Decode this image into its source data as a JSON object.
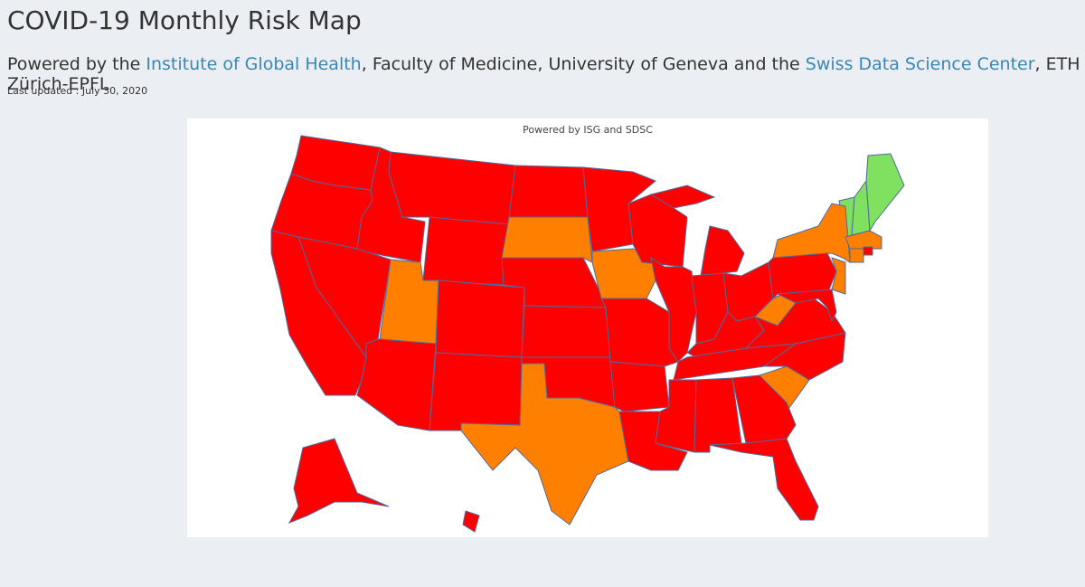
{
  "header": {
    "title": "COVID-19 Monthly Risk Map",
    "subtitle": [
      "Powered by the ",
      "Institute of Global Health",
      ", Faculty of Medicine, University of Geneva and the ",
      "Swiss Data Science Center",
      ", ETH Zürich-EPFL"
    ],
    "updated": "Last updated : July 30, 2020"
  },
  "map": {
    "title": "Powered by ISG and SDSC",
    "border_color": "#4f6a9a",
    "region_colors": [
      "#ff0000",
      "#ff0000",
      "#ff0000",
      "#ff0000",
      "#ff0000",
      "#ff0000",
      "#ff0000",
      "#ff8000",
      "#ff0000",
      "#ff0000",
      "#ff0000",
      "#ff0000",
      "#ff8000",
      "#ff0000",
      "#ff0000",
      "#ff0000",
      "#ff8000",
      "#ff0000",
      "#ff8000",
      "#ff0000",
      "#ff0000",
      "#ff0000",
      "#ff0000",
      "#ff0000",
      "#ff0000",
      "#ff0000",
      "#ff0000",
      "#ff0000",
      "#ff0000",
      "#ff0000",
      "#ff0000",
      "#ff8000",
      "#ff0000",
      "#ff0000",
      "#ff0000",
      "#ff0000",
      "#ff8000",
      "#80e060",
      "#80e060",
      "#80e060",
      "#ff8000",
      "#ff8000",
      "#ff0000",
      "#ff8000",
      "#ff0000",
      "#ff8000",
      "#ff0000",
      "#ff0000",
      "#ff0000",
      "#ff0000"
    ]
  }
}
